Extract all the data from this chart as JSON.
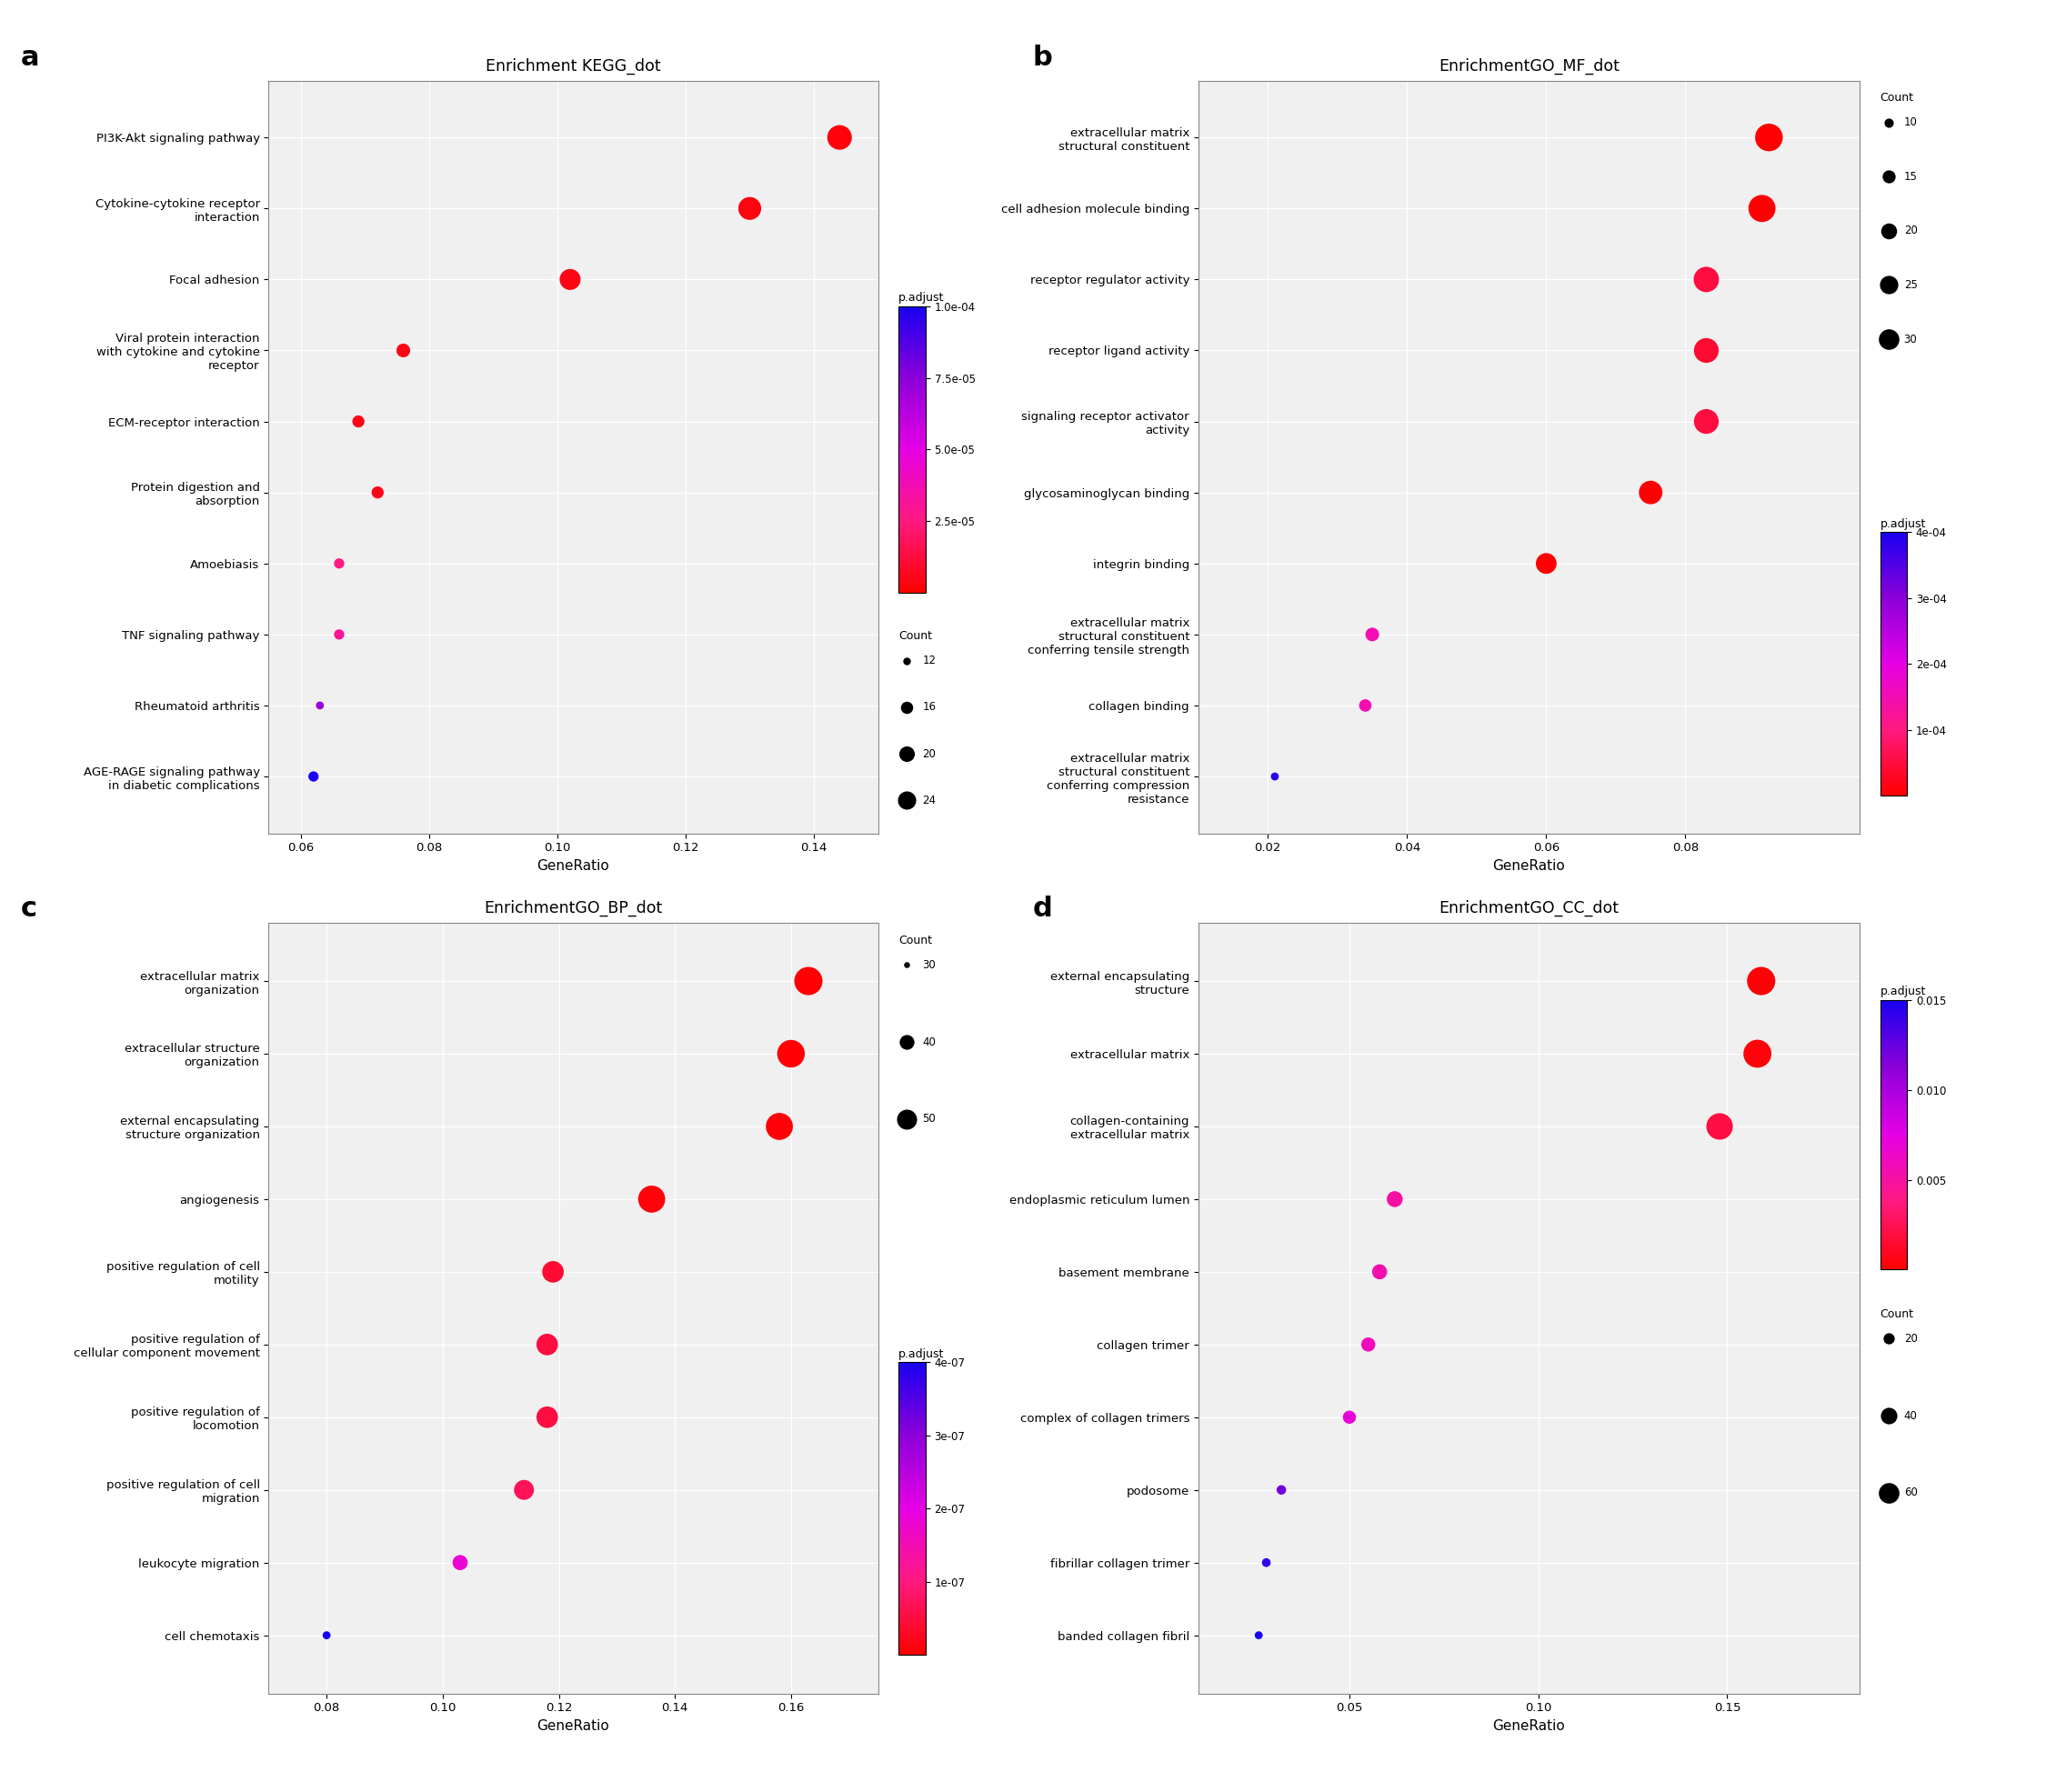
{
  "panel_a": {
    "title": "Enrichment KEGG_dot",
    "xlabel": "GeneRatio",
    "categories": [
      "PI3K-Akt signaling pathway",
      "Cytokine-cytokine receptor\ninteraction",
      "Focal adhesion",
      "Viral protein interaction\nwith cytokine and cytokine\nreceptor",
      "ECM-receptor interaction",
      "Protein digestion and\nabsorption",
      "Amoebiasis",
      "TNF signaling pathway",
      "Rheumatoid arthritis",
      "AGE-RAGE signaling pathway\nin diabetic complications"
    ],
    "gene_ratio": [
      0.144,
      0.13,
      0.102,
      0.076,
      0.069,
      0.072,
      0.066,
      0.066,
      0.063,
      0.062
    ],
    "p_adjust": [
      2e-06,
      3e-06,
      4e-06,
      5e-06,
      5e-06,
      5e-06,
      2.5e-05,
      3e-05,
      7e-05,
      0.0001
    ],
    "count": [
      24,
      22,
      20,
      14,
      13,
      13,
      12,
      12,
      11,
      12
    ],
    "xlim": [
      0.055,
      0.15
    ],
    "xticks": [
      0.06,
      0.08,
      0.1,
      0.12,
      0.14
    ],
    "padjust_vmin": 0.0,
    "padjust_vmax": 0.0001,
    "padjust_ticks": [
      2.5e-05,
      5e-05,
      7.5e-05,
      0.0001
    ],
    "padjust_ticklabels": [
      "2.5e-05",
      "5.0e-05",
      "7.5e-05",
      "1.0e-04"
    ],
    "count_legend": [
      12,
      16,
      20,
      24
    ],
    "size_min": 40,
    "size_max": 380
  },
  "panel_b": {
    "title": "EnrichmentGO_MF_dot",
    "xlabel": "GeneRatio",
    "categories": [
      "extracellular matrix\nstructural constituent",
      "cell adhesion molecule binding",
      "receptor regulator activity",
      "receptor ligand activity",
      "signaling receptor activator\nactivity",
      "glycosaminoglycan binding",
      "integrin binding",
      "extracellular matrix\nstructural constituent\nconferring tensile strength",
      "collagen binding",
      "extracellular matrix\nstructural constituent\nconferring compression\nresistance"
    ],
    "gene_ratio": [
      0.092,
      0.091,
      0.083,
      0.083,
      0.083,
      0.075,
      0.06,
      0.035,
      0.034,
      0.021
    ],
    "p_adjust": [
      2e-06,
      2e-06,
      5e-05,
      4e-05,
      5e-05,
      3e-06,
      3e-06,
      0.00015,
      0.00015,
      0.00038
    ],
    "count": [
      30,
      29,
      26,
      25,
      25,
      23,
      19,
      11,
      10,
      7
    ],
    "xlim": [
      0.01,
      0.105
    ],
    "xticks": [
      0.02,
      0.04,
      0.06,
      0.08
    ],
    "padjust_vmin": 0.0,
    "padjust_vmax": 0.0004,
    "padjust_ticks": [
      0.0001,
      0.0002,
      0.0003,
      0.0004
    ],
    "padjust_ticklabels": [
      "1e-04",
      "2e-04",
      "3e-04",
      "4e-04"
    ],
    "count_legend": [
      10,
      15,
      20,
      25,
      30
    ],
    "size_min": 40,
    "size_max": 480
  },
  "panel_c": {
    "title": "EnrichmentGO_BP_dot",
    "xlabel": "GeneRatio",
    "categories": [
      "extracellular matrix\norganization",
      "extracellular structure\norganization",
      "external encapsulating\nstructure organization",
      "angiogenesis",
      "positive regulation of cell\nmotility",
      "positive regulation of\ncellular component movement",
      "positive regulation of\nlocomotion",
      "positive regulation of cell\nmigration",
      "leukocyte migration",
      "cell chemotaxis"
    ],
    "gene_ratio": [
      0.163,
      0.16,
      0.158,
      0.136,
      0.119,
      0.118,
      0.118,
      0.114,
      0.103,
      0.08
    ],
    "p_adjust": [
      3e-09,
      4e-09,
      5e-09,
      8e-09,
      4e-08,
      5e-08,
      5e-08,
      7e-08,
      1.8e-07,
      4e-07
    ],
    "count": [
      52,
      51,
      50,
      50,
      42,
      42,
      42,
      40,
      35,
      30
    ],
    "xlim": [
      0.07,
      0.175
    ],
    "xticks": [
      0.08,
      0.1,
      0.12,
      0.14,
      0.16
    ],
    "padjust_vmin": 0.0,
    "padjust_vmax": 4e-07,
    "padjust_ticks": [
      1e-07,
      2e-07,
      3e-07,
      4e-07
    ],
    "padjust_ticklabels": [
      "1e-07",
      "2e-07",
      "3e-07",
      "4e-07"
    ],
    "count_legend": [
      30,
      40,
      50
    ],
    "size_min": 40,
    "size_max": 500
  },
  "panel_d": {
    "title": "EnrichmentGO_CC_dot",
    "xlabel": "GeneRatio",
    "categories": [
      "external encapsulating\nstructure",
      "extracellular matrix",
      "collagen-containing\nextracellular matrix",
      "endoplasmic reticulum lumen",
      "basement membrane",
      "collagen trimer",
      "complex of collagen trimers",
      "podosome",
      "fibrillar collagen trimer",
      "banded collagen fibril"
    ],
    "gene_ratio": [
      0.159,
      0.158,
      0.148,
      0.062,
      0.058,
      0.055,
      0.05,
      0.032,
      0.028,
      0.026
    ],
    "p_adjust": [
      0.0002,
      0.0003,
      0.002,
      0.005,
      0.0055,
      0.006,
      0.007,
      0.012,
      0.014,
      0.015
    ],
    "count": [
      62,
      61,
      55,
      22,
      20,
      18,
      16,
      10,
      9,
      8
    ],
    "xlim": [
      0.01,
      0.185
    ],
    "xticks": [
      0.05,
      0.1,
      0.15
    ],
    "padjust_vmin": 0.0,
    "padjust_vmax": 0.015,
    "padjust_ticks": [
      0.005,
      0.01,
      0.015
    ],
    "padjust_ticklabels": [
      "0.005",
      "0.010",
      "0.015"
    ],
    "count_legend": [
      20,
      40,
      60
    ],
    "size_min": 40,
    "size_max": 500
  }
}
